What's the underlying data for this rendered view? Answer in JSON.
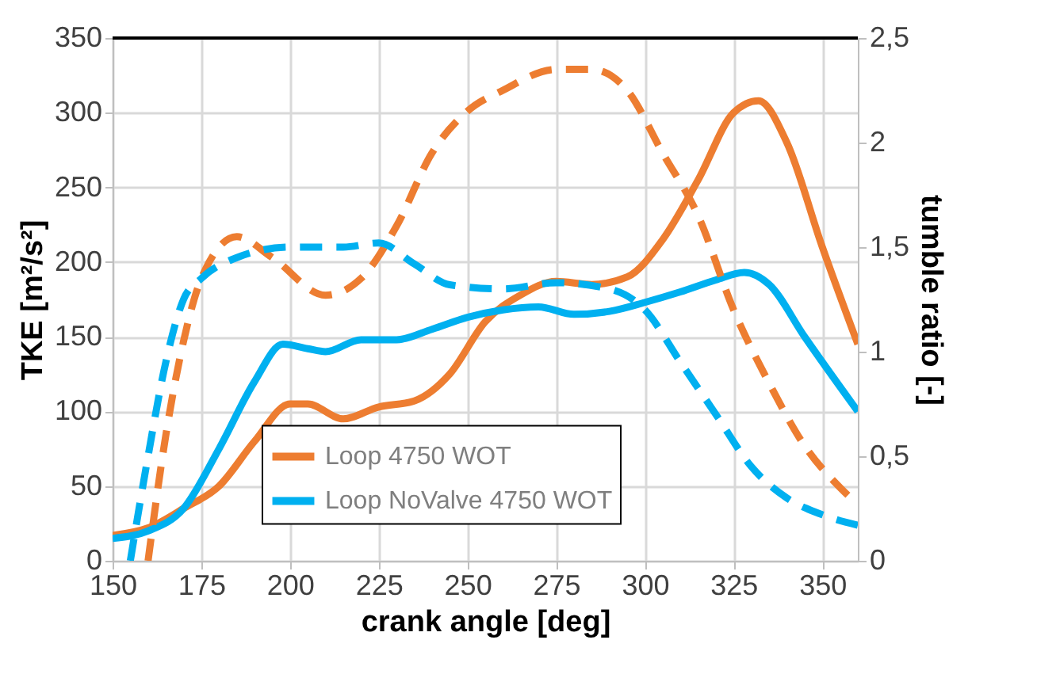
{
  "chart_data": {
    "type": "line",
    "xlabel": "crank angle [deg]",
    "ylabel": "TKE [m²/s²]",
    "y2label": "tumble ratio [-]",
    "xlim": [
      150,
      360
    ],
    "xticks": [
      150,
      175,
      200,
      225,
      250,
      275,
      300,
      325,
      350
    ],
    "ylim": [
      0,
      350
    ],
    "yticks": [
      0,
      50,
      100,
      150,
      200,
      250,
      300,
      350
    ],
    "y2lim": [
      0,
      2.5
    ],
    "y2ticks": [
      0,
      {
        "value": 0.5,
        "label": "0,5"
      },
      1,
      {
        "value": 1.5,
        "label": "1,5"
      },
      2,
      {
        "value": 2.5,
        "label": "2,5"
      }
    ],
    "grid": true,
    "legend": "bottom",
    "marker": "none",
    "series": [
      {
        "name": "Loop 4750 WOT",
        "color": "#ed7d31",
        "line_style": "solid",
        "x": [
          150,
          160,
          170,
          180,
          190,
          200,
          205,
          215,
          225,
          235,
          245,
          255,
          265,
          275,
          285,
          295,
          305,
          315,
          325,
          332,
          340,
          350,
          360
        ],
        "values": [
          17,
          22,
          35,
          50,
          80,
          105,
          105,
          95,
          103,
          107,
          125,
          160,
          178,
          187,
          185,
          190,
          215,
          255,
          300,
          308,
          280,
          210,
          145
        ]
      },
      {
        "name": "Loop NoValve 4750 WOT",
        "color": "#00b0f0",
        "line_style": "solid",
        "x": [
          150,
          160,
          170,
          180,
          190,
          198,
          205,
          210,
          220,
          230,
          240,
          250,
          260,
          270,
          280,
          290,
          300,
          310,
          320,
          328,
          335,
          345,
          360
        ],
        "values": [
          15,
          20,
          35,
          75,
          120,
          145,
          142,
          140,
          148,
          148,
          155,
          163,
          168,
          170,
          165,
          167,
          173,
          180,
          188,
          193,
          185,
          150,
          100
        ]
      },
      {
        "color": "#ed7d31",
        "line_style": "dashed",
        "axis": "y2",
        "x": [
          160,
          165,
          170,
          175,
          185,
          195,
          210,
          220,
          230,
          240,
          250,
          260,
          275,
          285,
          295,
          305,
          315,
          325,
          335,
          345,
          355,
          360
        ],
        "values": [
          0,
          0.6,
          1.05,
          1.35,
          1.55,
          1.45,
          1.27,
          1.35,
          1.6,
          1.95,
          2.15,
          2.25,
          2.35,
          2.35,
          2.25,
          1.95,
          1.65,
          1.2,
          0.85,
          0.55,
          0.35,
          0.27
        ]
      },
      {
        "color": "#00b0f0",
        "line_style": "dashed",
        "axis": "y2",
        "x": [
          155,
          160,
          165,
          170,
          175,
          185,
          200,
          215,
          225,
          235,
          245,
          260,
          275,
          290,
          300,
          310,
          320,
          330,
          340,
          350,
          360
        ],
        "values": [
          0,
          0.5,
          0.95,
          1.25,
          1.35,
          1.45,
          1.5,
          1.5,
          1.52,
          1.42,
          1.32,
          1.3,
          1.33,
          1.3,
          1.2,
          0.95,
          0.7,
          0.45,
          0.3,
          0.22,
          0.17
        ]
      }
    ]
  }
}
